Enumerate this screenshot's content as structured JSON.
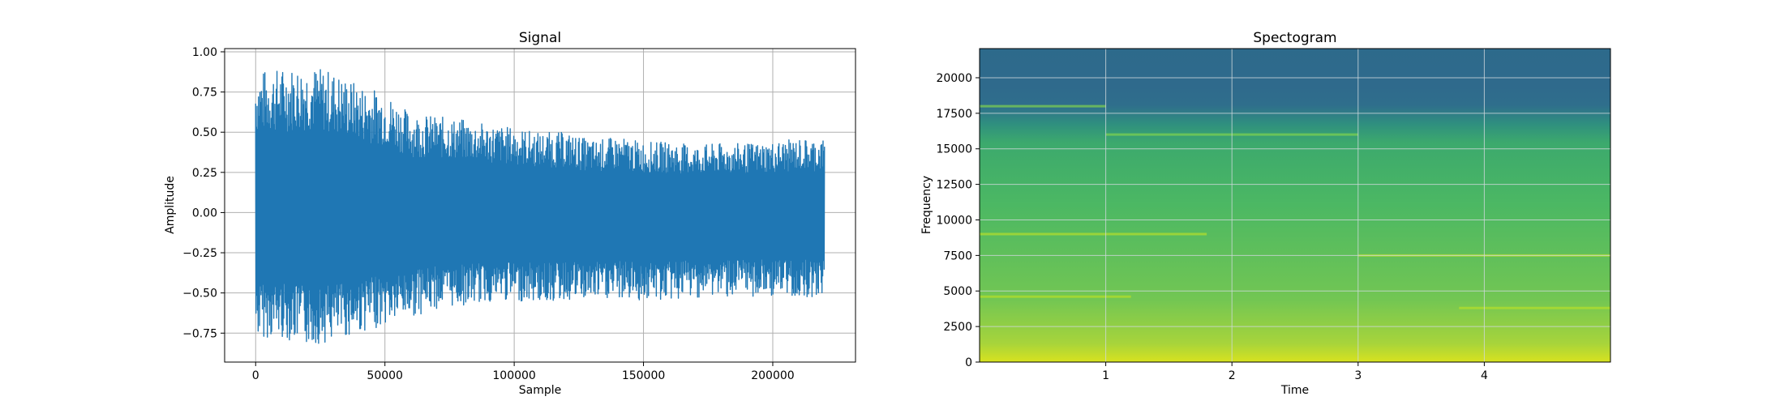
{
  "chart_data": [
    {
      "type": "line",
      "title": "Signal",
      "xlabel": "Sample",
      "ylabel": "Amplitude",
      "xlim": [
        -12000,
        232000
      ],
      "ylim": [
        -0.93,
        1.02
      ],
      "xticks": [
        0,
        50000,
        100000,
        150000,
        200000
      ],
      "xtick_labels": [
        "0",
        "50000",
        "100000",
        "150000",
        "200000"
      ],
      "yticks": [
        -0.75,
        -0.5,
        -0.25,
        0.0,
        0.25,
        0.5,
        0.75,
        1.0
      ],
      "ytick_labels": [
        "−0.75",
        "−0.50",
        "−0.25",
        "0.00",
        "0.25",
        "0.50",
        "0.75",
        "1.00"
      ],
      "grid": true,
      "color": "#1f77b4",
      "series": [
        {
          "x": [
            0,
            10000,
            20000,
            30000,
            40000,
            50000,
            60000,
            70000,
            80000,
            90000,
            100000,
            110000,
            120000,
            130000,
            140000,
            150000,
            160000,
            170000,
            180000,
            190000,
            200000,
            210000,
            220000
          ],
          "y_max": [
            0.88,
            0.9,
            0.92,
            0.88,
            0.8,
            0.75,
            0.62,
            0.6,
            0.58,
            0.55,
            0.53,
            0.5,
            0.5,
            0.45,
            0.47,
            0.44,
            0.44,
            0.42,
            0.43,
            0.43,
            0.44,
            0.46,
            0.46
          ],
          "y_min": [
            -0.78,
            -0.78,
            -0.83,
            -0.8,
            -0.75,
            -0.7,
            -0.65,
            -0.6,
            -0.58,
            -0.56,
            -0.55,
            -0.56,
            -0.55,
            -0.55,
            -0.54,
            -0.55,
            -0.55,
            -0.53,
            -0.52,
            -0.53,
            -0.52,
            -0.53,
            -0.52
          ]
        }
      ]
    },
    {
      "type": "heatmap",
      "title": "Spectogram",
      "xlabel": "Time",
      "ylabel": "Frequency",
      "xlim": [
        0,
        5.0
      ],
      "ylim": [
        0,
        22050
      ],
      "xticks": [
        1,
        2,
        3,
        4
      ],
      "xtick_labels": [
        "1",
        "2",
        "3",
        "4"
      ],
      "yticks": [
        0,
        2500,
        5000,
        7500,
        10000,
        12500,
        15000,
        17500,
        20000
      ],
      "ytick_labels": [
        "0",
        "2500",
        "5000",
        "7500",
        "10000",
        "12500",
        "15000",
        "17500",
        "20000"
      ],
      "grid": true,
      "colormap": "viridis",
      "colors": {
        "background_high": "#2f6a8c",
        "mid": "#3fa874",
        "low_freq": "#c6dc2a",
        "grid": "#cfd8dc"
      },
      "bands": [
        {
          "freq": 4600,
          "time_start": 0.0,
          "time_end": 1.2
        },
        {
          "freq": 9000,
          "time_start": 0.0,
          "time_end": 1.8
        },
        {
          "freq": 7500,
          "time_start": 3.0,
          "time_end": 5.0
        },
        {
          "freq": 3800,
          "time_start": 3.8,
          "time_end": 5.0
        },
        {
          "freq": 18000,
          "time_start": 0.0,
          "time_end": 1.0
        },
        {
          "freq": 16000,
          "time_start": 1.0,
          "time_end": 3.0
        }
      ]
    }
  ]
}
